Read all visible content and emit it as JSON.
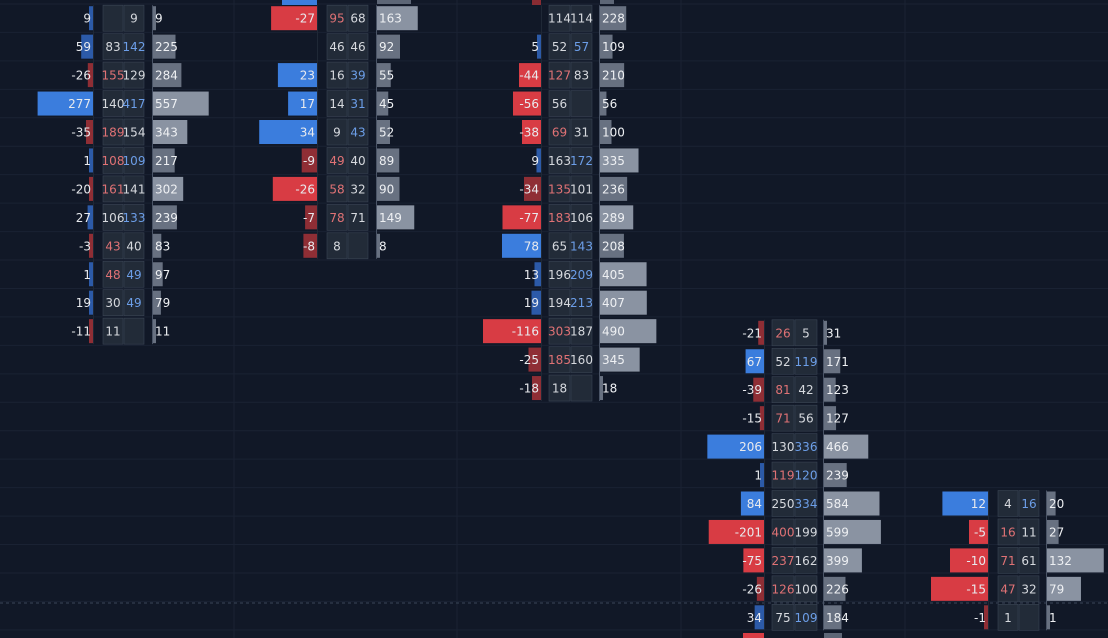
{
  "chart_data": {
    "type": "footprint",
    "colors": {
      "background": "#111827",
      "grid": "#1a2233",
      "buy": "#3b7ddd",
      "sell": "#d83c44",
      "total_bar": "#7d8797",
      "bid_text": "#e07275",
      "ask_text": "#6c9ee8",
      "neutral_text": "#d6d9de",
      "cell_bg": "#222b38",
      "cell_border": "#3a4454"
    },
    "columns": [
      {
        "rows": [
          {
            "delta": 9,
            "bid": null,
            "ask": 9,
            "total": 9
          },
          {
            "delta": 59,
            "bid": 83,
            "ask": 142,
            "total": 225
          },
          {
            "delta": -26,
            "bid": 155,
            "ask": 129,
            "total": 284
          },
          {
            "delta": 277,
            "bid": 140,
            "ask": 417,
            "total": 557
          },
          {
            "delta": -35,
            "bid": 189,
            "ask": 154,
            "total": 343
          },
          {
            "delta": 1,
            "bid": 108,
            "ask": 109,
            "total": 217
          },
          {
            "delta": -20,
            "bid": 161,
            "ask": 141,
            "total": 302
          },
          {
            "delta": 27,
            "bid": 106,
            "ask": 133,
            "total": 239
          },
          {
            "delta": -3,
            "bid": 43,
            "ask": 40,
            "total": 83
          },
          {
            "delta": 1,
            "bid": 48,
            "ask": 49,
            "total": 97
          },
          {
            "delta": 19,
            "bid": 30,
            "ask": 49,
            "total": 79
          },
          {
            "delta": -11,
            "bid": 11,
            "ask": null,
            "total": 11
          }
        ]
      },
      {
        "rows": [
          {
            "delta": -27,
            "bid": 95,
            "ask": 68,
            "total": 163
          },
          {
            "delta": null,
            "bid": 46,
            "ask": 46,
            "total": 92
          },
          {
            "delta": 23,
            "bid": 16,
            "ask": 39,
            "total": 55
          },
          {
            "delta": 17,
            "bid": 14,
            "ask": 31,
            "total": 45
          },
          {
            "delta": 34,
            "bid": 9,
            "ask": 43,
            "total": 52
          },
          {
            "delta": -9,
            "bid": 49,
            "ask": 40,
            "total": 89
          },
          {
            "delta": -26,
            "bid": 58,
            "ask": 32,
            "total": 90
          },
          {
            "delta": -7,
            "bid": 78,
            "ask": 71,
            "total": 149
          },
          {
            "delta": -8,
            "bid": 8,
            "ask": null,
            "total": 8
          }
        ]
      },
      {
        "rows": [
          {
            "delta": null,
            "bid": 114,
            "ask": 114,
            "total": 228
          },
          {
            "delta": 5,
            "bid": 52,
            "ask": 57,
            "total": 109
          },
          {
            "delta": -44,
            "bid": 127,
            "ask": 83,
            "total": 210
          },
          {
            "delta": -56,
            "bid": 56,
            "ask": null,
            "total": 56
          },
          {
            "delta": -38,
            "bid": 69,
            "ask": 31,
            "total": 100
          },
          {
            "delta": 9,
            "bid": 163,
            "ask": 172,
            "total": 335
          },
          {
            "delta": -34,
            "bid": 135,
            "ask": 101,
            "total": 236
          },
          {
            "delta": -77,
            "bid": 183,
            "ask": 106,
            "total": 289
          },
          {
            "delta": 78,
            "bid": 65,
            "ask": 143,
            "total": 208
          },
          {
            "delta": 13,
            "bid": 196,
            "ask": 209,
            "total": 405
          },
          {
            "delta": 19,
            "bid": 194,
            "ask": 213,
            "total": 407
          },
          {
            "delta": -116,
            "bid": 303,
            "ask": 187,
            "total": 490
          },
          {
            "delta": -25,
            "bid": 185,
            "ask": 160,
            "total": 345
          },
          {
            "delta": -18,
            "bid": 18,
            "ask": null,
            "total": 18
          }
        ]
      },
      {
        "rows": [
          {
            "delta": -21,
            "bid": 26,
            "ask": 5,
            "total": 31
          },
          {
            "delta": 67,
            "bid": 52,
            "ask": 119,
            "total": 171
          },
          {
            "delta": -39,
            "bid": 81,
            "ask": 42,
            "total": 123
          },
          {
            "delta": -15,
            "bid": 71,
            "ask": 56,
            "total": 127
          },
          {
            "delta": 206,
            "bid": 130,
            "ask": 336,
            "total": 466
          },
          {
            "delta": 1,
            "bid": 119,
            "ask": 120,
            "total": 239
          },
          {
            "delta": 84,
            "bid": 250,
            "ask": 334,
            "total": 584
          },
          {
            "delta": -201,
            "bid": 400,
            "ask": 199,
            "total": 599
          },
          {
            "delta": -75,
            "bid": 237,
            "ask": 162,
            "total": 399
          },
          {
            "delta": -26,
            "bid": 126,
            "ask": 100,
            "total": 226
          },
          {
            "delta": 34,
            "bid": 75,
            "ask": 109,
            "total": 184
          }
        ]
      },
      {
        "rows": [
          {
            "delta": 12,
            "bid": 4,
            "ask": 16,
            "total": 20
          },
          {
            "delta": -5,
            "bid": 16,
            "ask": 11,
            "total": 27
          },
          {
            "delta": -10,
            "bid": 71,
            "ask": 61,
            "total": 132
          },
          {
            "delta": -15,
            "bid": 47,
            "ask": 32,
            "total": 79
          },
          {
            "delta": -1,
            "bid": 1,
            "ask": null,
            "total": 1
          }
        ]
      }
    ]
  }
}
